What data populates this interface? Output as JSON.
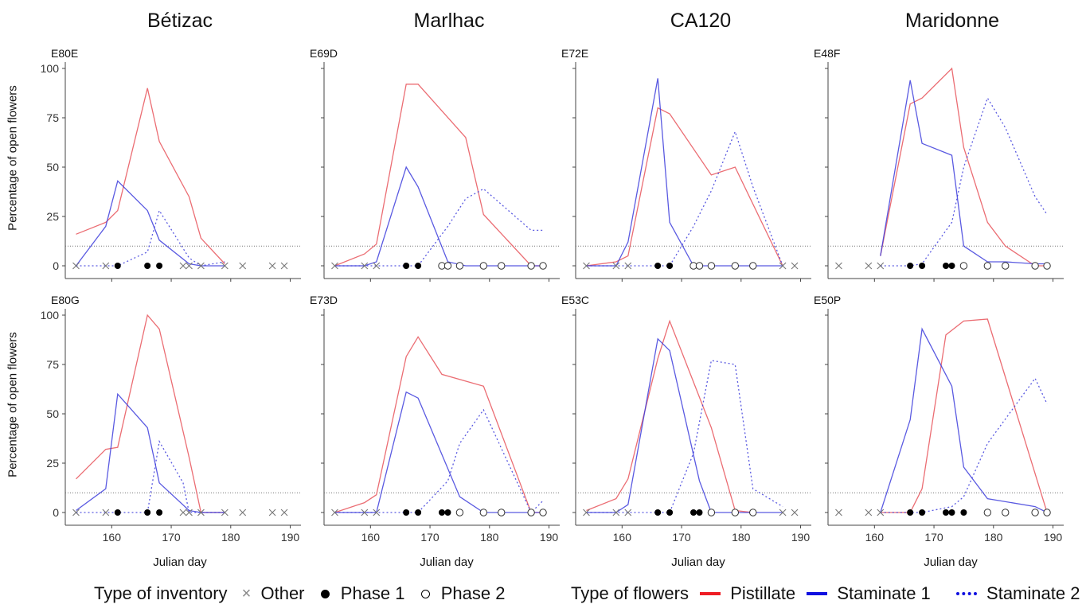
{
  "figure": {
    "columns": [
      "Bétizac",
      "Marlhac",
      "CA120",
      "Maridonne"
    ],
    "y_axis_label": "Percentage of open flowers",
    "x_axis_label": "Julian day",
    "legend_inventory_title": "Type of inventory",
    "legend_inventory_items": [
      "Other",
      "Phase 1",
      "Phase 2"
    ],
    "legend_flowers_title": "Type of flowers",
    "legend_flowers_items": [
      "Pistillate",
      "Staminate 1",
      "Staminate 2"
    ],
    "colors": {
      "pistillate": "#e8545a",
      "staminate1": "#3d3ddc",
      "staminate2": "#3d3ddc",
      "threshold": "#777777",
      "axis": "#444444"
    }
  },
  "chart_data": [
    {
      "type": "line",
      "title": "E80E",
      "xlabel": "Julian day",
      "ylabel": "Percentage of open flowers",
      "xlim": [
        153,
        191
      ],
      "ylim": [
        0,
        100
      ],
      "xticks": [
        160,
        170,
        180,
        190
      ],
      "yticks": [
        0,
        25,
        50,
        75,
        100
      ],
      "threshold": 10,
      "series": [
        {
          "name": "Pistillate",
          "x": [
            154,
            159,
            161,
            166,
            168,
            173,
            175,
            179
          ],
          "y": [
            16,
            22,
            28,
            90,
            63,
            35,
            14,
            1
          ]
        },
        {
          "name": "Staminate 1",
          "x": [
            154,
            159,
            161,
            166,
            168,
            173,
            175,
            179
          ],
          "y": [
            0,
            20,
            43,
            28,
            13,
            1,
            0,
            0
          ]
        },
        {
          "name": "Staminate 2",
          "x": [
            154,
            159,
            161,
            166,
            168,
            173,
            175,
            179
          ],
          "y": [
            0,
            0,
            0,
            7,
            28,
            4,
            0,
            2
          ]
        }
      ],
      "markers": {
        "Other": [
          154,
          159,
          172,
          173,
          175,
          179,
          182,
          187,
          189
        ],
        "Phase 1": [
          161,
          166,
          168
        ],
        "Phase 2": []
      }
    },
    {
      "type": "line",
      "title": "E69D",
      "xlabel": "Julian day",
      "ylabel": "Percentage of open flowers",
      "xlim": [
        153,
        191
      ],
      "ylim": [
        0,
        100
      ],
      "xticks": [
        160,
        170,
        180,
        190
      ],
      "yticks": [
        0,
        25,
        50,
        75,
        100
      ],
      "threshold": 10,
      "series": [
        {
          "name": "Pistillate",
          "x": [
            154,
            159,
            161,
            166,
            168,
            176,
            179,
            187,
            189
          ],
          "y": [
            0,
            6,
            11,
            92,
            92,
            65,
            26,
            0,
            0
          ]
        },
        {
          "name": "Staminate 1",
          "x": [
            154,
            159,
            161,
            166,
            168,
            173,
            176,
            179,
            187,
            189
          ],
          "y": [
            0,
            0,
            2,
            50,
            40,
            2,
            0,
            0,
            0,
            0
          ]
        },
        {
          "name": "Staminate 2",
          "x": [
            154,
            159,
            161,
            166,
            168,
            173,
            176,
            179,
            187,
            189
          ],
          "y": [
            0,
            0,
            0,
            0,
            0,
            20,
            34,
            39,
            18,
            18
          ]
        }
      ],
      "markers": {
        "Other": [
          154,
          159,
          161
        ],
        "Phase 1": [
          166,
          168
        ],
        "Phase 2": [
          172,
          173,
          175,
          179,
          182,
          187,
          189
        ]
      }
    },
    {
      "type": "line",
      "title": "E72E",
      "xlabel": "Julian day",
      "ylabel": "Percentage of open flowers",
      "xlim": [
        153,
        191
      ],
      "ylim": [
        0,
        100
      ],
      "xticks": [
        160,
        170,
        180,
        190
      ],
      "yticks": [
        0,
        25,
        50,
        75,
        100
      ],
      "threshold": 10,
      "series": [
        {
          "name": "Pistillate",
          "x": [
            154,
            159,
            161,
            166,
            168,
            175,
            179,
            187
          ],
          "y": [
            0,
            2,
            5,
            80,
            77,
            46,
            50,
            0
          ]
        },
        {
          "name": "Staminate 1",
          "x": [
            154,
            159,
            161,
            166,
            168,
            172,
            175,
            179,
            187
          ],
          "y": [
            0,
            0,
            12,
            95,
            22,
            0,
            0,
            0,
            0
          ]
        },
        {
          "name": "Staminate 2",
          "x": [
            154,
            159,
            161,
            166,
            168,
            172,
            175,
            179,
            182,
            187
          ],
          "y": [
            0,
            0,
            0,
            0,
            0,
            20,
            38,
            68,
            40,
            0
          ]
        }
      ],
      "markers": {
        "Other": [
          154,
          159,
          161,
          187,
          189
        ],
        "Phase 1": [
          166,
          168
        ],
        "Phase 2": [
          172,
          173,
          175,
          179,
          182
        ]
      }
    },
    {
      "type": "line",
      "title": "E48F",
      "xlabel": "Julian day",
      "ylabel": "Percentage of open flowers",
      "xlim": [
        153,
        191
      ],
      "ylim": [
        0,
        100
      ],
      "xticks": [
        160,
        170,
        180,
        190
      ],
      "yticks": [
        0,
        25,
        50,
        75,
        100
      ],
      "threshold": 10,
      "series": [
        {
          "name": "Pistillate",
          "x": [
            161,
            166,
            168,
            173,
            175,
            179,
            182,
            187,
            189
          ],
          "y": [
            5,
            82,
            85,
            100,
            60,
            22,
            10,
            0,
            0
          ]
        },
        {
          "name": "Staminate 1",
          "x": [
            161,
            166,
            168,
            173,
            175,
            179,
            182,
            187,
            189
          ],
          "y": [
            5,
            94,
            62,
            56,
            10,
            2,
            2,
            1,
            1
          ]
        },
        {
          "name": "Staminate 2",
          "x": [
            161,
            166,
            168,
            173,
            175,
            179,
            182,
            187,
            189
          ],
          "y": [
            0,
            0,
            1,
            22,
            50,
            85,
            70,
            35,
            26
          ]
        }
      ],
      "markers": {
        "Other": [
          154,
          159,
          161
        ],
        "Phase 1": [
          166,
          168,
          172,
          173
        ],
        "Phase 2": [
          175,
          179,
          182,
          187,
          189
        ]
      }
    },
    {
      "type": "line",
      "title": "E80G",
      "xlabel": "Julian day",
      "ylabel": "Percentage of open flowers",
      "xlim": [
        153,
        191
      ],
      "ylim": [
        0,
        100
      ],
      "xticks": [
        160,
        170,
        180,
        190
      ],
      "yticks": [
        0,
        25,
        50,
        75,
        100
      ],
      "threshold": 10,
      "series": [
        {
          "name": "Pistillate",
          "x": [
            154,
            159,
            161,
            166,
            168,
            173,
            175,
            179
          ],
          "y": [
            17,
            32,
            33,
            100,
            93,
            28,
            0,
            0
          ]
        },
        {
          "name": "Staminate 1",
          "x": [
            154,
            159,
            161,
            166,
            168,
            173,
            175,
            179
          ],
          "y": [
            1,
            12,
            60,
            43,
            15,
            1,
            0,
            0
          ]
        },
        {
          "name": "Staminate 2",
          "x": [
            154,
            159,
            161,
            166,
            168,
            172,
            173,
            175,
            179
          ],
          "y": [
            0,
            0,
            0,
            0,
            36,
            15,
            0,
            0,
            0
          ]
        }
      ],
      "markers": {
        "Other": [
          154,
          159,
          172,
          173,
          175,
          179,
          182,
          187,
          189
        ],
        "Phase 1": [
          161,
          166,
          168
        ],
        "Phase 2": []
      }
    },
    {
      "type": "line",
      "title": "E73D",
      "xlabel": "Julian day",
      "ylabel": "Percentage of open flowers",
      "xlim": [
        153,
        191
      ],
      "ylim": [
        0,
        100
      ],
      "xticks": [
        160,
        170,
        180,
        190
      ],
      "yticks": [
        0,
        25,
        50,
        75,
        100
      ],
      "threshold": 10,
      "series": [
        {
          "name": "Pistillate",
          "x": [
            154,
            159,
            161,
            166,
            168,
            172,
            179,
            187,
            189
          ],
          "y": [
            0,
            5,
            9,
            79,
            89,
            70,
            64,
            0,
            0
          ]
        },
        {
          "name": "Staminate 1",
          "x": [
            154,
            159,
            161,
            166,
            168,
            175,
            179,
            187,
            189
          ],
          "y": [
            0,
            0,
            0,
            61,
            58,
            8,
            0,
            0,
            0
          ]
        },
        {
          "name": "Staminate 2",
          "x": [
            154,
            159,
            161,
            166,
            168,
            173,
            175,
            179,
            187,
            189
          ],
          "y": [
            0,
            0,
            0,
            0,
            0,
            16,
            35,
            52,
            0,
            6
          ]
        }
      ],
      "markers": {
        "Other": [
          154,
          159,
          161
        ],
        "Phase 1": [
          166,
          168,
          172,
          173
        ],
        "Phase 2": [
          175,
          179,
          182,
          187,
          189
        ]
      }
    },
    {
      "type": "line",
      "title": "E53C",
      "xlabel": "Julian day",
      "ylabel": "Percentage of open flowers",
      "xlim": [
        153,
        191
      ],
      "ylim": [
        0,
        100
      ],
      "xticks": [
        160,
        170,
        180,
        190
      ],
      "yticks": [
        0,
        25,
        50,
        75,
        100
      ],
      "threshold": 10,
      "series": [
        {
          "name": "Pistillate",
          "x": [
            154,
            159,
            161,
            166,
            168,
            175,
            179,
            182
          ],
          "y": [
            1,
            7,
            17,
            78,
            97,
            43,
            1,
            0
          ]
        },
        {
          "name": "Staminate 1",
          "x": [
            154,
            159,
            161,
            166,
            168,
            173,
            175,
            179,
            187
          ],
          "y": [
            0,
            0,
            4,
            88,
            82,
            16,
            0,
            0,
            0
          ]
        },
        {
          "name": "Staminate 2",
          "x": [
            154,
            159,
            161,
            166,
            168,
            172,
            175,
            179,
            182,
            187
          ],
          "y": [
            0,
            0,
            0,
            0,
            0,
            30,
            77,
            75,
            12,
            3
          ]
        }
      ],
      "markers": {
        "Other": [
          154,
          159,
          161,
          187,
          189
        ],
        "Phase 1": [
          166,
          168,
          172,
          173
        ],
        "Phase 2": [
          175,
          179,
          182
        ]
      }
    },
    {
      "type": "line",
      "title": "E50P",
      "xlabel": "Julian day",
      "ylabel": "Percentage of open flowers",
      "xlim": [
        153,
        191
      ],
      "ylim": [
        0,
        100
      ],
      "xticks": [
        160,
        170,
        180,
        190
      ],
      "yticks": [
        0,
        25,
        50,
        75,
        100
      ],
      "threshold": 10,
      "series": [
        {
          "name": "Pistillate",
          "x": [
            161,
            166,
            168,
            172,
            175,
            179,
            189
          ],
          "y": [
            0,
            0,
            12,
            90,
            97,
            98,
            0
          ]
        },
        {
          "name": "Staminate 1",
          "x": [
            161,
            166,
            168,
            173,
            175,
            179,
            187,
            189
          ],
          "y": [
            0,
            47,
            93,
            64,
            23,
            7,
            3,
            0
          ]
        },
        {
          "name": "Staminate 2",
          "x": [
            161,
            166,
            168,
            173,
            175,
            179,
            187,
            189
          ],
          "y": [
            0,
            0,
            0,
            3,
            8,
            35,
            68,
            55
          ]
        }
      ],
      "markers": {
        "Other": [
          154,
          159,
          161
        ],
        "Phase 1": [
          166,
          168,
          172,
          173,
          175
        ],
        "Phase 2": [
          179,
          182,
          187,
          189
        ]
      }
    }
  ]
}
